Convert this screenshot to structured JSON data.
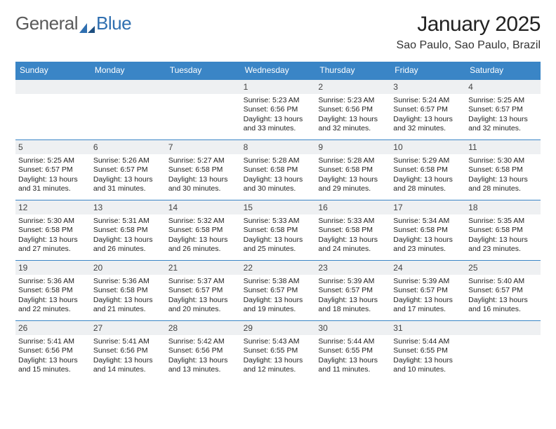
{
  "brand": {
    "part1": "General",
    "part2": "Blue"
  },
  "title": "January 2025",
  "location": "Sao Paulo, Sao Paulo, Brazil",
  "colors": {
    "header_bg": "#3a85c6",
    "header_text": "#ffffff",
    "daynum_bg": "#eef0f2",
    "border": "#3a85c6",
    "text": "#222222",
    "brand_gray": "#5a5a5a",
    "brand_blue": "#2f6fb0"
  },
  "day_headers": [
    "Sunday",
    "Monday",
    "Tuesday",
    "Wednesday",
    "Thursday",
    "Friday",
    "Saturday"
  ],
  "weeks": [
    [
      {
        "day": "",
        "sunrise": "",
        "sunset": "",
        "daylight": ""
      },
      {
        "day": "",
        "sunrise": "",
        "sunset": "",
        "daylight": ""
      },
      {
        "day": "",
        "sunrise": "",
        "sunset": "",
        "daylight": ""
      },
      {
        "day": "1",
        "sunrise": "Sunrise: 5:23 AM",
        "sunset": "Sunset: 6:56 PM",
        "daylight": "Daylight: 13 hours and 33 minutes."
      },
      {
        "day": "2",
        "sunrise": "Sunrise: 5:23 AM",
        "sunset": "Sunset: 6:56 PM",
        "daylight": "Daylight: 13 hours and 32 minutes."
      },
      {
        "day": "3",
        "sunrise": "Sunrise: 5:24 AM",
        "sunset": "Sunset: 6:57 PM",
        "daylight": "Daylight: 13 hours and 32 minutes."
      },
      {
        "day": "4",
        "sunrise": "Sunrise: 5:25 AM",
        "sunset": "Sunset: 6:57 PM",
        "daylight": "Daylight: 13 hours and 32 minutes."
      }
    ],
    [
      {
        "day": "5",
        "sunrise": "Sunrise: 5:25 AM",
        "sunset": "Sunset: 6:57 PM",
        "daylight": "Daylight: 13 hours and 31 minutes."
      },
      {
        "day": "6",
        "sunrise": "Sunrise: 5:26 AM",
        "sunset": "Sunset: 6:57 PM",
        "daylight": "Daylight: 13 hours and 31 minutes."
      },
      {
        "day": "7",
        "sunrise": "Sunrise: 5:27 AM",
        "sunset": "Sunset: 6:58 PM",
        "daylight": "Daylight: 13 hours and 30 minutes."
      },
      {
        "day": "8",
        "sunrise": "Sunrise: 5:28 AM",
        "sunset": "Sunset: 6:58 PM",
        "daylight": "Daylight: 13 hours and 30 minutes."
      },
      {
        "day": "9",
        "sunrise": "Sunrise: 5:28 AM",
        "sunset": "Sunset: 6:58 PM",
        "daylight": "Daylight: 13 hours and 29 minutes."
      },
      {
        "day": "10",
        "sunrise": "Sunrise: 5:29 AM",
        "sunset": "Sunset: 6:58 PM",
        "daylight": "Daylight: 13 hours and 28 minutes."
      },
      {
        "day": "11",
        "sunrise": "Sunrise: 5:30 AM",
        "sunset": "Sunset: 6:58 PM",
        "daylight": "Daylight: 13 hours and 28 minutes."
      }
    ],
    [
      {
        "day": "12",
        "sunrise": "Sunrise: 5:30 AM",
        "sunset": "Sunset: 6:58 PM",
        "daylight": "Daylight: 13 hours and 27 minutes."
      },
      {
        "day": "13",
        "sunrise": "Sunrise: 5:31 AM",
        "sunset": "Sunset: 6:58 PM",
        "daylight": "Daylight: 13 hours and 26 minutes."
      },
      {
        "day": "14",
        "sunrise": "Sunrise: 5:32 AM",
        "sunset": "Sunset: 6:58 PM",
        "daylight": "Daylight: 13 hours and 26 minutes."
      },
      {
        "day": "15",
        "sunrise": "Sunrise: 5:33 AM",
        "sunset": "Sunset: 6:58 PM",
        "daylight": "Daylight: 13 hours and 25 minutes."
      },
      {
        "day": "16",
        "sunrise": "Sunrise: 5:33 AM",
        "sunset": "Sunset: 6:58 PM",
        "daylight": "Daylight: 13 hours and 24 minutes."
      },
      {
        "day": "17",
        "sunrise": "Sunrise: 5:34 AM",
        "sunset": "Sunset: 6:58 PM",
        "daylight": "Daylight: 13 hours and 23 minutes."
      },
      {
        "day": "18",
        "sunrise": "Sunrise: 5:35 AM",
        "sunset": "Sunset: 6:58 PM",
        "daylight": "Daylight: 13 hours and 23 minutes."
      }
    ],
    [
      {
        "day": "19",
        "sunrise": "Sunrise: 5:36 AM",
        "sunset": "Sunset: 6:58 PM",
        "daylight": "Daylight: 13 hours and 22 minutes."
      },
      {
        "day": "20",
        "sunrise": "Sunrise: 5:36 AM",
        "sunset": "Sunset: 6:58 PM",
        "daylight": "Daylight: 13 hours and 21 minutes."
      },
      {
        "day": "21",
        "sunrise": "Sunrise: 5:37 AM",
        "sunset": "Sunset: 6:57 PM",
        "daylight": "Daylight: 13 hours and 20 minutes."
      },
      {
        "day": "22",
        "sunrise": "Sunrise: 5:38 AM",
        "sunset": "Sunset: 6:57 PM",
        "daylight": "Daylight: 13 hours and 19 minutes."
      },
      {
        "day": "23",
        "sunrise": "Sunrise: 5:39 AM",
        "sunset": "Sunset: 6:57 PM",
        "daylight": "Daylight: 13 hours and 18 minutes."
      },
      {
        "day": "24",
        "sunrise": "Sunrise: 5:39 AM",
        "sunset": "Sunset: 6:57 PM",
        "daylight": "Daylight: 13 hours and 17 minutes."
      },
      {
        "day": "25",
        "sunrise": "Sunrise: 5:40 AM",
        "sunset": "Sunset: 6:57 PM",
        "daylight": "Daylight: 13 hours and 16 minutes."
      }
    ],
    [
      {
        "day": "26",
        "sunrise": "Sunrise: 5:41 AM",
        "sunset": "Sunset: 6:56 PM",
        "daylight": "Daylight: 13 hours and 15 minutes."
      },
      {
        "day": "27",
        "sunrise": "Sunrise: 5:41 AM",
        "sunset": "Sunset: 6:56 PM",
        "daylight": "Daylight: 13 hours and 14 minutes."
      },
      {
        "day": "28",
        "sunrise": "Sunrise: 5:42 AM",
        "sunset": "Sunset: 6:56 PM",
        "daylight": "Daylight: 13 hours and 13 minutes."
      },
      {
        "day": "29",
        "sunrise": "Sunrise: 5:43 AM",
        "sunset": "Sunset: 6:55 PM",
        "daylight": "Daylight: 13 hours and 12 minutes."
      },
      {
        "day": "30",
        "sunrise": "Sunrise: 5:44 AM",
        "sunset": "Sunset: 6:55 PM",
        "daylight": "Daylight: 13 hours and 11 minutes."
      },
      {
        "day": "31",
        "sunrise": "Sunrise: 5:44 AM",
        "sunset": "Sunset: 6:55 PM",
        "daylight": "Daylight: 13 hours and 10 minutes."
      },
      {
        "day": "",
        "sunrise": "",
        "sunset": "",
        "daylight": ""
      }
    ]
  ]
}
